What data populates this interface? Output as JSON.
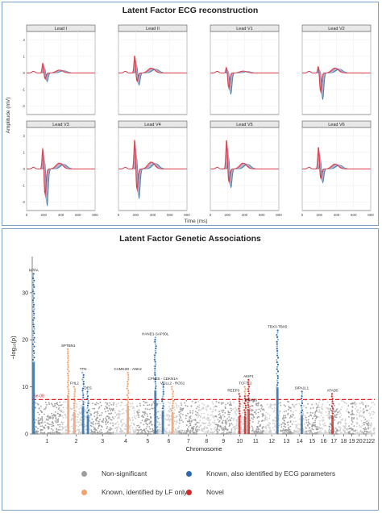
{
  "ecg": {
    "title": "Latent Factor ECG reconstruction",
    "ylabel": "Amplitude (mV)",
    "xlabel": "Time (ms)"
  },
  "gwas": {
    "title": "Latent Factor Genetic Associations",
    "xlabel": "Chromosome",
    "ylabel": "−log₁₀(p)",
    "threshold_label": "5e-08",
    "legend": {
      "nonsig": "Non-significant",
      "known_ecg": "Known, also identified by ECG parameters",
      "known_lf": "Known, identified by LF only",
      "novel": "Novel"
    }
  },
  "colors": {
    "nonsig_a": "#9e9e9e",
    "nonsig_b": "#cfcfcf",
    "known_ecg": "#2c6aa8",
    "known_ecg_light": "#7fb0dc",
    "known_lf": "#f4a06a",
    "novel": "#d62a2a",
    "threshold": "#e02020"
  },
  "chart_data": [
    {
      "type": "line",
      "title": "Latent Factor ECG reconstruction",
      "xlabel": "Time (ms)",
      "ylabel": "Amplitude (mV)",
      "xlim": [
        0,
        800
      ],
      "x_ticks": [
        0,
        200,
        400,
        600,
        800
      ],
      "ylim": [
        -2.5,
        2.5
      ],
      "y_ticks": [
        -2,
        -1,
        0,
        1,
        2
      ],
      "grid": true,
      "panels": [
        {
          "name": "Lead I",
          "r": 0.7,
          "s": -0.5,
          "t": 0.15
        },
        {
          "name": "Lead II",
          "r": 1.2,
          "s": -0.7,
          "t": 0.25
        },
        {
          "name": "Lead V1",
          "r": 0.5,
          "s": -1.2,
          "t": 0.1
        },
        {
          "name": "Lead V2",
          "r": 0.6,
          "s": -1.5,
          "t": 0.25
        },
        {
          "name": "Lead V3",
          "r": 1.6,
          "s": -2.1,
          "t": 0.3
        },
        {
          "name": "Lead V4",
          "r": 2.1,
          "s": -1.7,
          "t": 0.35
        },
        {
          "name": "Lead V5",
          "r": 2.0,
          "s": -1.1,
          "t": 0.3
        },
        {
          "name": "Lead V6",
          "r": 1.5,
          "s": -0.8,
          "t": 0.25
        }
      ]
    },
    {
      "type": "scatter",
      "title": "Latent Factor Genetic Associations",
      "xlabel": "Chromosome",
      "ylabel": "−log₁₀(p)",
      "ylim": [
        0,
        37
      ],
      "y_ticks": [
        0,
        10,
        20,
        30
      ],
      "categories": [
        "1",
        "2",
        "3",
        "4",
        "5",
        "6",
        "7",
        "8",
        "9",
        "10",
        "11",
        "12",
        "13",
        "14",
        "15",
        "16",
        "17",
        "18",
        "19",
        "20",
        "21",
        "22"
      ],
      "chromosome_labels": [
        "1",
        "2",
        "3",
        "4",
        "5",
        "6",
        "7",
        "8",
        "9",
        "10",
        "11",
        "12",
        "13",
        "14",
        "15",
        "16",
        "17",
        "18",
        "19",
        "20",
        "21",
        "22"
      ],
      "chrom_sizes": [
        248,
        242,
        198,
        190,
        181,
        171,
        159,
        145,
        138,
        134,
        135,
        133,
        114,
        107,
        102,
        90,
        83,
        80,
        59,
        64,
        47,
        51
      ],
      "threshold": 7.3,
      "loci": [
        {
          "label": "NPPA",
          "chrom": 1,
          "pos": 12,
          "y": 34,
          "category": "known_ecg"
        },
        {
          "label": "SPTBN1",
          "chrom": 2,
          "pos": 54,
          "y": 18,
          "category": "known_lf"
        },
        {
          "label": "FHL2",
          "chrom": 2,
          "pos": 106,
          "y": 10,
          "category": "known_lf"
        },
        {
          "label": "TTN",
          "chrom": 2,
          "pos": 178,
          "y": 13,
          "category": "known_ecg"
        },
        {
          "label": "DES",
          "chrom": 2,
          "pos": 219,
          "y": 9,
          "category": "known_ecg"
        },
        {
          "label": "CAMK2D - ANK2",
          "chrom": 4,
          "pos": 113,
          "y": 13,
          "category": "known_lf"
        },
        {
          "label": "HAND1-SAP30L",
          "chrom": 5,
          "pos": 154,
          "y": 20.5,
          "category": "known_ecg"
        },
        {
          "label": "CPNE5 - CDKN1A",
          "chrom": 6,
          "pos": 36,
          "y": 11,
          "category": "known_ecg"
        },
        {
          "label": "VGLL2 - ROS1",
          "chrom": 6,
          "pos": 117,
          "y": 10,
          "category": "known_lf"
        },
        {
          "label": "REEP3",
          "chrom": 10,
          "pos": 65,
          "y": 8.5,
          "category": "novel"
        },
        {
          "label": "TCF7L2",
          "chrom": 10,
          "pos": 114,
          "y": 10,
          "category": "known_lf"
        },
        {
          "label": "AKIP1",
          "chrom": 11,
          "pos": 8,
          "y": 11.5,
          "category": "novel"
        },
        {
          "label": "RBM20",
          "chrom": 10,
          "pos": 112,
          "y": 8,
          "category": "novel"
        },
        {
          "label": "TBX3-TBX5",
          "chrom": 12,
          "pos": 114,
          "y": 22,
          "category": "known_ecg"
        },
        {
          "label": "SIPA1L1",
          "chrom": 14,
          "pos": 71,
          "y": 9,
          "category": "known_ecg"
        },
        {
          "label": "ATAD5",
          "chrom": 17,
          "pos": 30,
          "y": 8.5,
          "category": "novel"
        }
      ]
    }
  ]
}
